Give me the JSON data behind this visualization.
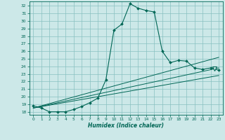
{
  "xlabel": "Humidex (Indice chaleur)",
  "bg_color": "#cce8e8",
  "grid_color": "#88c0c0",
  "line_color": "#006655",
  "xlim": [
    -0.5,
    23.5
  ],
  "ylim": [
    17.6,
    32.6
  ],
  "xticks": [
    0,
    1,
    2,
    3,
    4,
    5,
    6,
    7,
    8,
    9,
    10,
    11,
    12,
    13,
    14,
    15,
    16,
    17,
    18,
    19,
    20,
    21,
    22,
    23
  ],
  "yticks": [
    18,
    19,
    20,
    21,
    22,
    23,
    24,
    25,
    26,
    27,
    28,
    29,
    30,
    31,
    32
  ],
  "x_main": [
    0,
    1,
    2,
    3,
    4,
    5,
    6,
    7,
    8,
    9,
    10,
    11,
    12,
    13,
    14,
    15,
    16,
    17,
    18,
    19,
    20,
    21,
    22,
    23
  ],
  "y_main": [
    18.8,
    18.5,
    18.0,
    18.0,
    18.0,
    18.3,
    18.7,
    19.2,
    19.8,
    22.2,
    28.8,
    29.6,
    32.3,
    31.7,
    31.4,
    31.2,
    26.0,
    24.5,
    24.8,
    24.7,
    23.8,
    23.6,
    23.8,
    23.5
  ],
  "reg_lines": [
    {
      "x": [
        0,
        23
      ],
      "y": [
        18.5,
        25.2
      ]
    },
    {
      "x": [
        0,
        23
      ],
      "y": [
        18.5,
        23.8
      ]
    },
    {
      "x": [
        0,
        23
      ],
      "y": [
        18.5,
        22.8
      ]
    }
  ],
  "triangle_x": 22.5,
  "triangle_y": 23.7,
  "marker_style": "D",
  "markersize": 2.0
}
